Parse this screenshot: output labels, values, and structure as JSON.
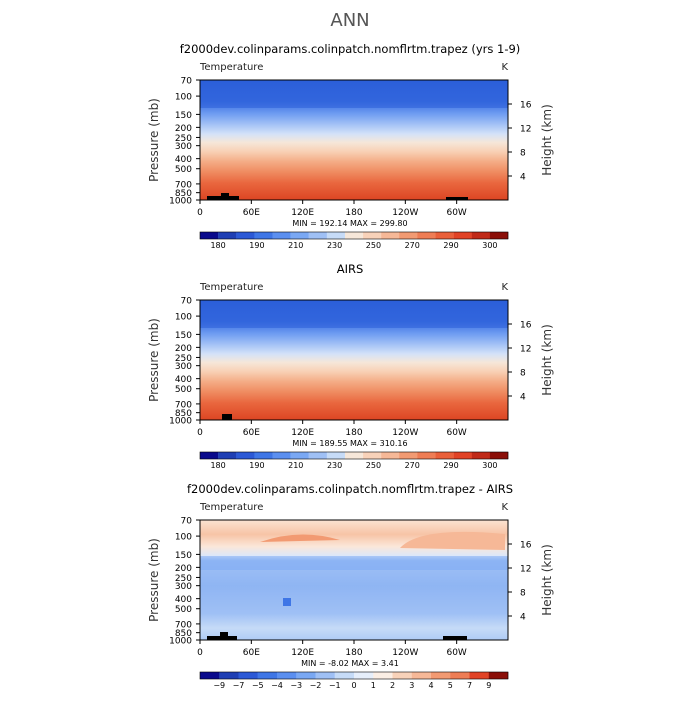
{
  "page": {
    "title": "ANN"
  },
  "chart_data": [
    {
      "type": "heatmap",
      "title": "f2000dev.colinparams.colinpatch.nomflrtm.trapez (yrs 1-9)",
      "variable": "Temperature",
      "units": "K",
      "ylabel": "Pressure (mb)",
      "ylabel_right": "Height (km)",
      "x_ticks": [
        "0",
        "60E",
        "120E",
        "180",
        "120W",
        "60W"
      ],
      "y_ticks": [
        "70",
        "100",
        "150",
        "200",
        "250",
        "300",
        "400",
        "500",
        "700",
        "850",
        "1000"
      ],
      "y_ticks_right": [
        "16",
        "12",
        "8",
        "4"
      ],
      "ylim": [
        1000,
        70
      ],
      "stats": "MIN = 192.14   MAX = 299.80",
      "min": 192.14,
      "max": 299.8,
      "colorbar_labels": [
        "180",
        "190",
        "210",
        "230",
        "250",
        "270",
        "290",
        "300"
      ],
      "colorbar_colors": [
        "#0a0a8c",
        "#1f3fb4",
        "#2c59d6",
        "#3f76e6",
        "#5b8ff0",
        "#7aa8f3",
        "#9fc0f5",
        "#c6dbf7",
        "#f6e7d9",
        "#f8d2b9",
        "#f6b897",
        "#f29a72",
        "#ee7d55",
        "#e9603a",
        "#e14326",
        "#c02a18",
        "#8b0f08"
      ]
    },
    {
      "type": "heatmap",
      "title": "AIRS",
      "variable": "Temperature",
      "units": "K",
      "ylabel": "Pressure (mb)",
      "ylabel_right": "Height (km)",
      "x_ticks": [
        "0",
        "60E",
        "120E",
        "180",
        "120W",
        "60W"
      ],
      "y_ticks": [
        "70",
        "100",
        "150",
        "200",
        "250",
        "300",
        "400",
        "500",
        "700",
        "850",
        "1000"
      ],
      "y_ticks_right": [
        "16",
        "12",
        "8",
        "4"
      ],
      "ylim": [
        1000,
        70
      ],
      "stats": "MIN = 189.55   MAX = 310.16",
      "min": 189.55,
      "max": 310.16,
      "colorbar_labels": [
        "180",
        "190",
        "210",
        "230",
        "250",
        "270",
        "290",
        "300"
      ],
      "colorbar_colors": [
        "#0a0a8c",
        "#1f3fb4",
        "#2c59d6",
        "#3f76e6",
        "#5b8ff0",
        "#7aa8f3",
        "#9fc0f5",
        "#c6dbf7",
        "#f6e7d9",
        "#f8d2b9",
        "#f6b897",
        "#f29a72",
        "#ee7d55",
        "#e9603a",
        "#e14326",
        "#c02a18",
        "#8b0f08"
      ]
    },
    {
      "type": "heatmap",
      "title": "f2000dev.colinparams.colinpatch.nomflrtm.trapez - AIRS",
      "variable": "Temperature",
      "units": "K",
      "ylabel": "Pressure (mb)",
      "ylabel_right": "Height (km)",
      "x_ticks": [
        "0",
        "60E",
        "120E",
        "180",
        "120W",
        "60W"
      ],
      "y_ticks": [
        "70",
        "100",
        "150",
        "200",
        "250",
        "300",
        "400",
        "500",
        "700",
        "850",
        "1000"
      ],
      "y_ticks_right": [
        "16",
        "12",
        "8",
        "4"
      ],
      "ylim": [
        1000,
        70
      ],
      "stats": "MIN =   -8.02   MAX =    3.41",
      "min": -8.02,
      "max": 3.41,
      "colorbar_labels": [
        "−9",
        "−7",
        "−5",
        "−4",
        "−3",
        "−2",
        "−1",
        "0",
        "1",
        "2",
        "3",
        "4",
        "5",
        "7",
        "9"
      ],
      "colorbar_colors": [
        "#0a0a8c",
        "#1f3fb4",
        "#2c59d6",
        "#3f76e6",
        "#5b8ff0",
        "#7aa8f3",
        "#9fc0f5",
        "#c6dbf7",
        "#e6eefa",
        "#fbeee4",
        "#f8d2b9",
        "#f6b897",
        "#f29a72",
        "#ee7d55",
        "#e14326",
        "#8b0f08"
      ]
    }
  ]
}
